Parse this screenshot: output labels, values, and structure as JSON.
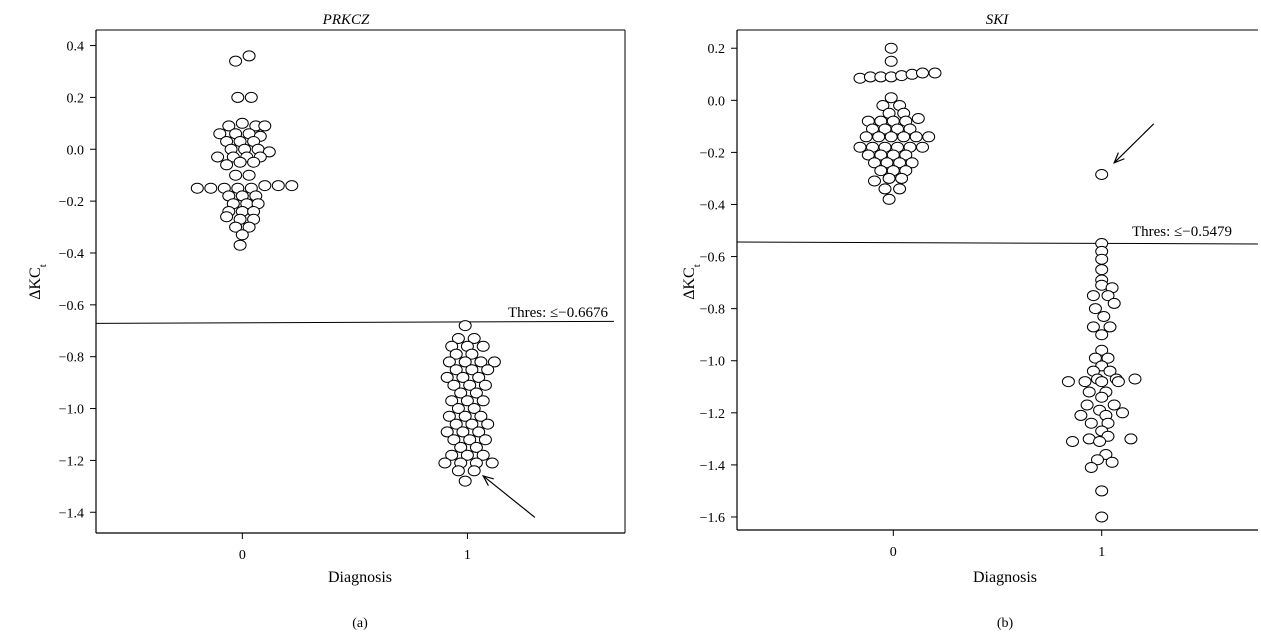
{
  "chart_data": [
    {
      "type": "scatter",
      "style": "beeswarm dot plot",
      "title": "PRKCZ",
      "xlabel": "Diagnosis",
      "ylabel_main": "ΔKC",
      "ylabel_sub": "t",
      "panel_label": "(a)",
      "categories": [
        "0",
        "1"
      ],
      "xlim": [
        -0.65,
        1.7
      ],
      "ylim": [
        -1.48,
        0.46
      ],
      "yticks": [
        0.4,
        0.2,
        0.0,
        -0.2,
        -0.4,
        -0.6,
        -0.8,
        -1.0,
        -1.2,
        -1.4
      ],
      "ytick_labels": [
        "0.4",
        "0.2",
        "0.0",
        "−0.2",
        "−0.4",
        "−0.6",
        "−0.8",
        "−1.0",
        "−1.2",
        "−1.4"
      ],
      "threshold": {
        "value": -0.6676,
        "label": "Thres: ≤−0.6676"
      },
      "annotation": {
        "type": "arrow",
        "from": [
          1.3,
          -1.42
        ],
        "to": [
          1.07,
          -1.26
        ]
      },
      "series": [
        {
          "category": 0,
          "points": [
            [
              -0.03,
              0.34
            ],
            [
              0.03,
              0.36
            ],
            [
              -0.02,
              0.2
            ],
            [
              0.04,
              0.2
            ],
            [
              -0.06,
              0.09
            ],
            [
              0.0,
              0.1
            ],
            [
              0.06,
              0.09
            ],
            [
              0.1,
              0.09
            ],
            [
              -0.1,
              0.06
            ],
            [
              -0.03,
              0.06
            ],
            [
              0.03,
              0.06
            ],
            [
              0.08,
              0.05
            ],
            [
              -0.07,
              0.03
            ],
            [
              -0.01,
              0.03
            ],
            [
              0.05,
              0.03
            ],
            [
              -0.05,
              0.0
            ],
            [
              0.01,
              0.0
            ],
            [
              0.07,
              0.0
            ],
            [
              0.12,
              -0.01
            ],
            [
              -0.11,
              -0.03
            ],
            [
              -0.04,
              -0.03
            ],
            [
              0.02,
              -0.03
            ],
            [
              0.08,
              -0.03
            ],
            [
              -0.07,
              -0.06
            ],
            [
              -0.01,
              -0.05
            ],
            [
              0.05,
              -0.05
            ],
            [
              -0.03,
              -0.1
            ],
            [
              0.03,
              -0.1
            ],
            [
              -0.2,
              -0.15
            ],
            [
              -0.14,
              -0.15
            ],
            [
              -0.08,
              -0.15
            ],
            [
              -0.02,
              -0.15
            ],
            [
              0.04,
              -0.15
            ],
            [
              0.1,
              -0.14
            ],
            [
              0.16,
              -0.14
            ],
            [
              0.22,
              -0.14
            ],
            [
              -0.06,
              -0.18
            ],
            [
              0.0,
              -0.18
            ],
            [
              0.06,
              -0.18
            ],
            [
              -0.04,
              -0.21
            ],
            [
              0.02,
              -0.21
            ],
            [
              0.07,
              -0.21
            ],
            [
              -0.06,
              -0.24
            ],
            [
              0.0,
              -0.24
            ],
            [
              0.05,
              -0.24
            ],
            [
              -0.07,
              -0.26
            ],
            [
              -0.01,
              -0.27
            ],
            [
              0.05,
              -0.27
            ],
            [
              -0.03,
              -0.3
            ],
            [
              0.03,
              -0.3
            ],
            [
              0.0,
              -0.33
            ],
            [
              -0.01,
              -0.37
            ]
          ]
        },
        {
          "category": 1,
          "points": [
            [
              0.99,
              -0.68
            ],
            [
              0.96,
              -0.73
            ],
            [
              1.03,
              -0.73
            ],
            [
              0.93,
              -0.76
            ],
            [
              1.0,
              -0.76
            ],
            [
              1.07,
              -0.76
            ],
            [
              0.95,
              -0.79
            ],
            [
              1.02,
              -0.79
            ],
            [
              0.92,
              -0.82
            ],
            [
              0.99,
              -0.82
            ],
            [
              1.06,
              -0.82
            ],
            [
              1.12,
              -0.82
            ],
            [
              0.95,
              -0.85
            ],
            [
              1.02,
              -0.85
            ],
            [
              1.09,
              -0.85
            ],
            [
              0.91,
              -0.88
            ],
            [
              0.98,
              -0.88
            ],
            [
              1.05,
              -0.88
            ],
            [
              0.94,
              -0.91
            ],
            [
              1.01,
              -0.91
            ],
            [
              1.08,
              -0.91
            ],
            [
              0.97,
              -0.94
            ],
            [
              1.04,
              -0.94
            ],
            [
              0.93,
              -0.97
            ],
            [
              1.0,
              -0.97
            ],
            [
              1.07,
              -0.97
            ],
            [
              0.96,
              -1.0
            ],
            [
              1.03,
              -1.0
            ],
            [
              0.92,
              -1.03
            ],
            [
              0.99,
              -1.03
            ],
            [
              1.06,
              -1.03
            ],
            [
              0.95,
              -1.06
            ],
            [
              1.02,
              -1.06
            ],
            [
              1.09,
              -1.06
            ],
            [
              0.91,
              -1.09
            ],
            [
              0.98,
              -1.09
            ],
            [
              1.05,
              -1.09
            ],
            [
              0.94,
              -1.12
            ],
            [
              1.01,
              -1.12
            ],
            [
              1.08,
              -1.12
            ],
            [
              0.97,
              -1.15
            ],
            [
              1.04,
              -1.15
            ],
            [
              0.93,
              -1.18
            ],
            [
              1.0,
              -1.18
            ],
            [
              1.07,
              -1.18
            ],
            [
              0.9,
              -1.21
            ],
            [
              0.97,
              -1.21
            ],
            [
              1.04,
              -1.21
            ],
            [
              1.11,
              -1.21
            ],
            [
              0.96,
              -1.24
            ],
            [
              1.03,
              -1.24
            ],
            [
              0.99,
              -1.28
            ]
          ]
        }
      ]
    },
    {
      "type": "scatter",
      "style": "beeswarm dot plot",
      "title": "SKI",
      "xlabel": "Diagnosis",
      "ylabel_main": "ΔKC",
      "ylabel_sub": "t",
      "panel_label": "(b)",
      "categories": [
        "0",
        "1"
      ],
      "xlim": [
        -0.75,
        1.75
      ],
      "ylim": [
        -1.65,
        0.27
      ],
      "yticks": [
        0.2,
        0.0,
        -0.2,
        -0.4,
        -0.6,
        -0.8,
        -1.0,
        -1.2,
        -1.4,
        -1.6
      ],
      "ytick_labels": [
        "0.2",
        "0.0",
        "−0.2",
        "−0.4",
        "−0.6",
        "−0.8",
        "−1.0",
        "−1.2",
        "−1.4",
        "−1.6"
      ],
      "threshold": {
        "value": -0.5479,
        "label": "Thres: ≤−0.5479"
      },
      "annotation": {
        "type": "arrow",
        "from": [
          1.25,
          -0.09
        ],
        "to": [
          1.06,
          -0.24
        ]
      },
      "series": [
        {
          "category": 0,
          "points": [
            [
              -0.01,
              0.2
            ],
            [
              -0.01,
              0.15
            ],
            [
              -0.16,
              0.085
            ],
            [
              -0.11,
              0.09
            ],
            [
              -0.06,
              0.09
            ],
            [
              -0.01,
              0.09
            ],
            [
              0.04,
              0.095
            ],
            [
              0.09,
              0.1
            ],
            [
              0.14,
              0.105
            ],
            [
              0.2,
              0.105
            ],
            [
              -0.01,
              0.01
            ],
            [
              -0.05,
              -0.02
            ],
            [
              0.03,
              -0.02
            ],
            [
              -0.02,
              -0.05
            ],
            [
              0.05,
              -0.05
            ],
            [
              -0.12,
              -0.08
            ],
            [
              -0.06,
              -0.08
            ],
            [
              0.0,
              -0.08
            ],
            [
              0.06,
              -0.08
            ],
            [
              0.12,
              -0.07
            ],
            [
              -0.1,
              -0.11
            ],
            [
              -0.04,
              -0.11
            ],
            [
              0.02,
              -0.11
            ],
            [
              0.08,
              -0.11
            ],
            [
              -0.13,
              -0.14
            ],
            [
              -0.07,
              -0.14
            ],
            [
              -0.01,
              -0.14
            ],
            [
              0.05,
              -0.14
            ],
            [
              0.11,
              -0.14
            ],
            [
              0.17,
              -0.14
            ],
            [
              -0.16,
              -0.18
            ],
            [
              -0.1,
              -0.18
            ],
            [
              -0.04,
              -0.18
            ],
            [
              0.02,
              -0.18
            ],
            [
              0.08,
              -0.18
            ],
            [
              0.14,
              -0.18
            ],
            [
              -0.12,
              -0.21
            ],
            [
              -0.06,
              -0.21
            ],
            [
              0.0,
              -0.21
            ],
            [
              0.06,
              -0.21
            ],
            [
              -0.09,
              -0.24
            ],
            [
              -0.03,
              -0.24
            ],
            [
              0.03,
              -0.24
            ],
            [
              0.09,
              -0.24
            ],
            [
              -0.06,
              -0.27
            ],
            [
              0.0,
              -0.27
            ],
            [
              0.06,
              -0.27
            ],
            [
              -0.09,
              -0.31
            ],
            [
              -0.02,
              -0.3
            ],
            [
              0.04,
              -0.3
            ],
            [
              -0.04,
              -0.34
            ],
            [
              0.03,
              -0.34
            ],
            [
              -0.02,
              -0.38
            ],
            [
              1.0,
              -0.285
            ]
          ]
        },
        {
          "category": 1,
          "points": [
            [
              1.0,
              -0.55
            ],
            [
              1.0,
              -0.58
            ],
            [
              1.0,
              -0.61
            ],
            [
              1.0,
              -0.65
            ],
            [
              1.0,
              -0.69
            ],
            [
              1.0,
              -0.71
            ],
            [
              1.05,
              -0.72
            ],
            [
              0.96,
              -0.75
            ],
            [
              1.03,
              -0.75
            ],
            [
              1.06,
              -0.78
            ],
            [
              0.97,
              -0.8
            ],
            [
              1.01,
              -0.83
            ],
            [
              0.96,
              -0.87
            ],
            [
              1.04,
              -0.87
            ],
            [
              1.0,
              -0.9
            ],
            [
              1.0,
              -0.96
            ],
            [
              0.97,
              -0.99
            ],
            [
              1.03,
              -0.99
            ],
            [
              1.0,
              -1.02
            ],
            [
              0.96,
              -1.04
            ],
            [
              1.04,
              -1.04
            ],
            [
              0.98,
              -1.07
            ],
            [
              1.07,
              -1.07
            ],
            [
              0.84,
              -1.08
            ],
            [
              0.92,
              -1.08
            ],
            [
              1.0,
              -1.08
            ],
            [
              1.08,
              -1.08
            ],
            [
              1.16,
              -1.07
            ],
            [
              0.94,
              -1.12
            ],
            [
              1.02,
              -1.12
            ],
            [
              1.0,
              -1.14
            ],
            [
              0.93,
              -1.17
            ],
            [
              1.06,
              -1.17
            ],
            [
              0.99,
              -1.19
            ],
            [
              0.9,
              -1.21
            ],
            [
              1.02,
              -1.21
            ],
            [
              1.1,
              -1.2
            ],
            [
              0.95,
              -1.24
            ],
            [
              1.03,
              -1.24
            ],
            [
              1.0,
              -1.27
            ],
            [
              1.03,
              -1.29
            ],
            [
              0.94,
              -1.3
            ],
            [
              1.14,
              -1.3
            ],
            [
              0.86,
              -1.31
            ],
            [
              0.99,
              -1.31
            ],
            [
              1.02,
              -1.36
            ],
            [
              0.98,
              -1.38
            ],
            [
              1.05,
              -1.39
            ],
            [
              0.95,
              -1.41
            ],
            [
              1.0,
              -1.5
            ],
            [
              1.0,
              -1.6
            ]
          ]
        }
      ]
    }
  ]
}
